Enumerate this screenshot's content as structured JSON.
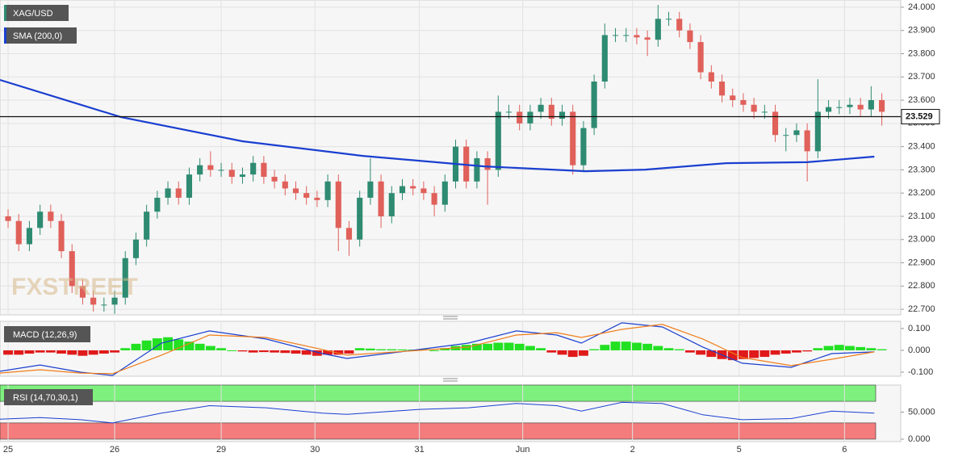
{
  "chart_data": [
    {
      "type": "candlestick",
      "title": "XAG/USD",
      "watermark": "FXSTREET",
      "xlim": [
        -0.76,
        83.7
      ],
      "ylim": [
        22.676,
        24.031
      ],
      "yticks": [
        {
          "value": 22.7,
          "label": "22.700"
        },
        {
          "value": 22.8,
          "label": "22.800"
        },
        {
          "value": 22.9,
          "label": "22.900"
        },
        {
          "value": 23.0,
          "label": "23.000"
        },
        {
          "value": 23.1,
          "label": "23.100"
        },
        {
          "value": 23.2,
          "label": "23.200"
        },
        {
          "value": 23.3,
          "label": "23.300"
        },
        {
          "value": 23.4,
          "label": "23.400"
        },
        {
          "value": 23.5,
          "label": "23.500"
        },
        {
          "value": 23.6,
          "label": "23.600"
        },
        {
          "value": 23.7,
          "label": "23.700"
        },
        {
          "value": 23.8,
          "label": "23.800"
        },
        {
          "value": 23.9,
          "label": "23.900"
        },
        {
          "value": 24.0,
          "label": "24.000"
        }
      ],
      "grid": true,
      "up_color": "#2e8b72",
      "down_color": "#e0605a",
      "open": [
        23.1,
        23.08,
        22.98,
        23.05,
        23.12,
        23.08,
        22.95,
        22.8,
        22.75,
        22.72,
        22.72,
        22.75,
        22.92,
        23.0,
        23.12,
        23.18,
        23.22,
        23.18,
        23.28,
        23.32,
        23.3,
        23.3,
        23.27,
        23.28,
        23.33,
        23.27,
        23.25,
        23.22,
        23.2,
        23.18,
        23.17,
        23.25,
        23.05,
        23.0,
        23.18,
        23.25,
        23.1,
        23.2,
        23.23,
        23.22,
        23.2,
        23.15,
        23.25,
        23.4,
        23.25,
        23.35,
        23.3,
        23.55,
        23.55,
        23.5,
        23.55,
        23.58,
        23.52,
        23.55,
        23.32,
        23.48,
        23.68,
        23.88,
        23.88,
        23.88,
        23.87,
        23.86,
        23.95,
        23.95,
        23.9,
        23.85,
        23.72,
        23.68,
        23.62,
        23.6,
        23.58,
        23.55,
        23.55,
        23.45,
        23.45,
        23.47,
        23.38,
        23.55,
        23.57,
        23.57,
        23.58,
        23.56,
        23.6
      ],
      "high": [
        23.13,
        23.11,
        23.08,
        23.15,
        23.15,
        23.11,
        22.98,
        22.83,
        22.78,
        22.75,
        22.78,
        22.95,
        23.03,
        23.15,
        23.21,
        23.25,
        23.25,
        23.31,
        23.35,
        23.38,
        23.33,
        23.33,
        23.31,
        23.36,
        23.36,
        23.3,
        23.28,
        23.25,
        23.23,
        23.21,
        23.28,
        23.28,
        23.08,
        23.21,
        23.35,
        23.28,
        23.23,
        23.26,
        23.26,
        23.25,
        23.23,
        23.28,
        23.43,
        23.43,
        23.38,
        23.38,
        23.62,
        23.58,
        23.58,
        23.58,
        23.61,
        23.61,
        23.58,
        23.58,
        23.51,
        23.71,
        23.93,
        23.91,
        23.91,
        23.91,
        23.9,
        24.01,
        23.98,
        23.98,
        23.93,
        23.88,
        23.75,
        23.71,
        23.65,
        23.63,
        23.61,
        23.58,
        23.58,
        23.48,
        23.5,
        23.5,
        23.69,
        23.6,
        23.6,
        23.61,
        23.61,
        23.66,
        23.63
      ],
      "low": [
        23.05,
        22.95,
        22.95,
        23.02,
        23.05,
        22.92,
        22.77,
        22.72,
        22.69,
        22.69,
        22.68,
        22.72,
        22.89,
        22.97,
        23.09,
        23.15,
        23.15,
        23.15,
        23.25,
        23.27,
        23.27,
        23.24,
        23.24,
        23.25,
        23.24,
        23.22,
        23.19,
        23.17,
        23.15,
        23.14,
        23.14,
        22.95,
        22.93,
        22.97,
        23.15,
        23.05,
        23.07,
        23.17,
        23.19,
        23.17,
        23.1,
        23.12,
        23.22,
        23.22,
        23.22,
        23.15,
        23.27,
        23.52,
        23.47,
        23.47,
        23.52,
        23.49,
        23.49,
        23.28,
        23.29,
        23.45,
        23.65,
        23.85,
        23.85,
        23.84,
        23.79,
        23.83,
        23.92,
        23.87,
        23.82,
        23.69,
        23.65,
        23.59,
        23.57,
        23.55,
        23.52,
        23.52,
        23.42,
        23.38,
        23.42,
        23.25,
        23.35,
        23.52,
        23.54,
        23.54,
        23.53,
        23.53,
        23.49
      ],
      "close": [
        23.08,
        22.98,
        23.05,
        23.12,
        23.08,
        22.95,
        22.8,
        22.75,
        22.72,
        22.72,
        22.75,
        22.92,
        23.0,
        23.12,
        23.18,
        23.22,
        23.18,
        23.28,
        23.32,
        23.3,
        23.3,
        23.27,
        23.28,
        23.33,
        23.27,
        23.25,
        23.22,
        23.2,
        23.18,
        23.17,
        23.25,
        23.05,
        23.0,
        23.18,
        23.25,
        23.1,
        23.2,
        23.23,
        23.22,
        23.2,
        23.15,
        23.25,
        23.4,
        23.25,
        23.35,
        23.3,
        23.55,
        23.55,
        23.5,
        23.55,
        23.58,
        23.52,
        23.55,
        23.32,
        23.48,
        23.68,
        23.88,
        23.88,
        23.88,
        23.87,
        23.86,
        23.95,
        23.95,
        23.9,
        23.85,
        23.72,
        23.68,
        23.62,
        23.6,
        23.58,
        23.55,
        23.55,
        23.45,
        23.45,
        23.47,
        23.38,
        23.55,
        23.57,
        23.57,
        23.58,
        23.56,
        23.6,
        23.55
      ],
      "sma": {
        "name": "SMA (200,0)",
        "color": "#1a3fd0",
        "x": [
          -0.76,
          10.6,
          22,
          33.3,
          44.7,
          54.2,
          59.8,
          67.4,
          75,
          81.3
        ],
        "values": [
          23.687,
          23.527,
          23.423,
          23.36,
          23.315,
          23.294,
          23.301,
          23.329,
          23.333,
          23.357
        ]
      },
      "last_price": 23.529
    },
    {
      "type": "macd",
      "title": "MACD (12,26,9)",
      "xlim": [
        -0.76,
        83.7
      ],
      "ylim": [
        -0.1185,
        0.133
      ],
      "yticks": [
        {
          "value": 0.1,
          "label": "0.100"
        },
        {
          "value": 0,
          "label": "0.000"
        },
        {
          "value": -0.1,
          "label": "-0.100"
        }
      ],
      "histogram": {
        "up_color": "#22e022",
        "down_color": "#e01a1a",
        "values": [
          -0.02,
          -0.02,
          -0.015,
          -0.01,
          -0.01,
          -0.015,
          -0.02,
          -0.025,
          -0.02,
          -0.015,
          -0.01,
          0.01,
          0.03,
          0.045,
          0.055,
          0.06,
          0.05,
          0.04,
          0.03,
          0.02,
          0.01,
          0.0,
          -0.005,
          -0.01,
          -0.008,
          -0.01,
          -0.012,
          -0.015,
          -0.02,
          -0.025,
          -0.02,
          -0.02,
          -0.015,
          0.01,
          0.008,
          0.005,
          0.005,
          0.004,
          0.003,
          0.005,
          0.0,
          0.01,
          0.02,
          0.025,
          0.03,
          0.03,
          0.035,
          0.035,
          0.03,
          0.02,
          0.01,
          -0.01,
          -0.02,
          -0.03,
          -0.025,
          0.005,
          0.025,
          0.04,
          0.04,
          0.035,
          0.03,
          0.02,
          0.01,
          0.005,
          -0.01,
          -0.02,
          -0.03,
          -0.04,
          -0.045,
          -0.04,
          -0.035,
          -0.03,
          -0.02,
          -0.015,
          -0.01,
          -0.005,
          0.01,
          0.02,
          0.025,
          0.02,
          0.015,
          0.01,
          0.005
        ]
      },
      "x": [
        -0.76,
        3.0,
        6.8,
        9.8,
        14.4,
        18.9,
        24.2,
        29.5,
        31.8,
        38.6,
        43.2,
        47.7,
        51.5,
        53.8,
        57.6,
        61.4,
        65.2,
        68.9,
        73.5,
        77.3,
        81.3
      ],
      "lines": [
        {
          "color": "#1a3fd0",
          "values": [
            -0.096,
            -0.067,
            -0.1,
            -0.115,
            0.033,
            0.089,
            0.052,
            -0.015,
            -0.037,
            0.004,
            0.033,
            0.089,
            0.07,
            0.033,
            0.126,
            0.107,
            0.015,
            -0.059,
            -0.078,
            -0.015,
            -0.007
          ]
        },
        {
          "color": "#f07d1a",
          "values": [
            -0.104,
            -0.089,
            -0.104,
            -0.107,
            -0.022,
            0.07,
            0.059,
            0.004,
            -0.022,
            0,
            0.015,
            0.07,
            0.081,
            0.059,
            0.096,
            0.119,
            0.052,
            -0.033,
            -0.07,
            -0.041,
            -0.007
          ]
        }
      ]
    },
    {
      "type": "rsi",
      "title": "RSI (14,70,30,1)",
      "xlim": [
        -0.76,
        83.7
      ],
      "ylim": [
        -4.5,
        100
      ],
      "yticks": [
        {
          "value": 50,
          "label": "50.000"
        },
        {
          "value": 0,
          "label": "0.000"
        }
      ],
      "bands": [
        {
          "from": 70,
          "to": 100,
          "color": "#7ef07e"
        },
        {
          "from": 0,
          "to": 30,
          "color": "#f47c7c"
        }
      ],
      "x": [
        -0.76,
        3.0,
        6.8,
        9.8,
        14.4,
        18.9,
        24.2,
        29.5,
        31.8,
        38.6,
        43.2,
        47.7,
        51.5,
        53.8,
        57.6,
        61.4,
        65.2,
        68.9,
        73.5,
        77.3,
        81.3
      ],
      "line": {
        "color": "#1a3fd0",
        "values": [
          37,
          40,
          36,
          30,
          48,
          62,
          58,
          48,
          46,
          55,
          58,
          66,
          62,
          52,
          68,
          66,
          45,
          36,
          38,
          52,
          48
        ]
      },
      "xticks": [
        {
          "value": 0,
          "label": "25"
        },
        {
          "value": 10,
          "label": "26"
        },
        {
          "value": 20,
          "label": "29"
        },
        {
          "value": 28.8,
          "label": "30"
        },
        {
          "value": 38.6,
          "label": "31"
        },
        {
          "value": 48.3,
          "label": "Jun"
        },
        {
          "value": 58.6,
          "label": "2"
        },
        {
          "value": 68.6,
          "label": "5"
        },
        {
          "value": 78.5,
          "label": "6"
        }
      ]
    }
  ]
}
